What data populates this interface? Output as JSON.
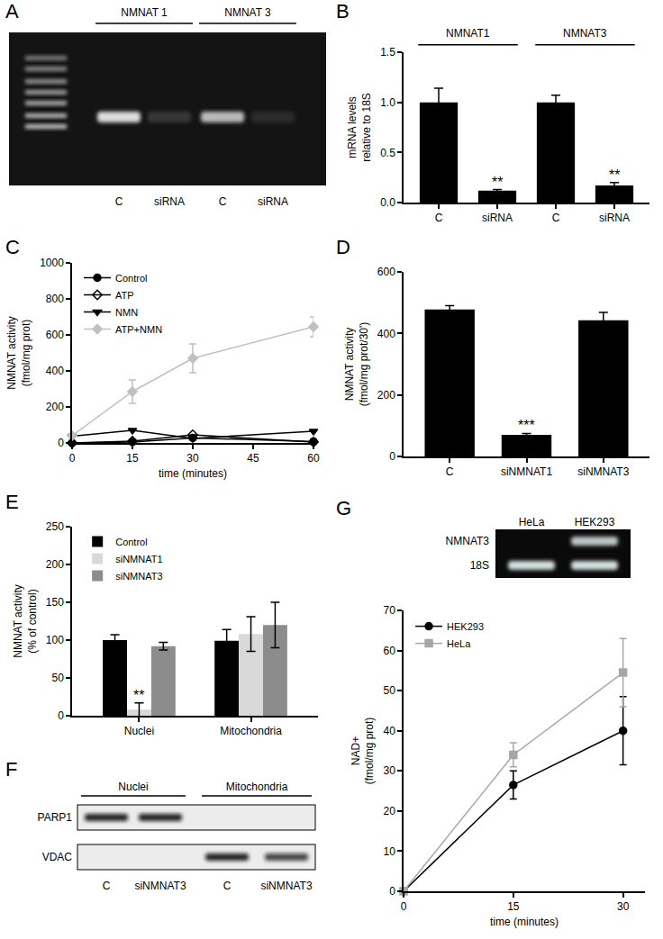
{
  "chart_data": [
    {
      "panel": "B",
      "type": "bar",
      "categories": [
        "C",
        "siRNA",
        "C",
        "siRNA"
      ],
      "values": [
        1.0,
        0.12,
        1.0,
        0.17
      ],
      "errors": [
        0.14,
        0.01,
        0.07,
        0.03
      ],
      "color": "#000000",
      "ylabel": [
        "mRNA levels",
        "relative to 18S"
      ],
      "ylim": [
        0,
        1.5
      ],
      "yticks": [
        {
          "value": 0,
          "label": "0.0"
        },
        {
          "value": 0.5,
          "label": "0.5"
        },
        {
          "value": 1,
          "label": "1.0"
        },
        {
          "value": 1.5,
          "label": "1.5"
        }
      ],
      "groups": [
        {
          "label": "NMNAT1",
          "from": 0,
          "to": 1
        },
        {
          "label": "NMNAT3",
          "from": 2,
          "to": 3
        }
      ],
      "annotations": [
        {
          "text": "**",
          "category": 1
        },
        {
          "text": "**",
          "category": 3
        }
      ]
    },
    {
      "panel": "C",
      "type": "line",
      "x": [
        0,
        15,
        30,
        60
      ],
      "series": [
        {
          "name": "Control",
          "color": "#000000",
          "marker": "circle",
          "values": [
            0,
            5,
            28,
            8
          ]
        },
        {
          "name": "ATP",
          "color": "#000000",
          "marker": "diamond-open",
          "values": [
            0,
            10,
            45,
            5
          ]
        },
        {
          "name": "NMN",
          "color": "#000000",
          "marker": "triangle-down",
          "values": [
            38,
            70,
            25,
            65
          ]
        },
        {
          "name": "ATP+NMN",
          "color": "#c0c0c0",
          "marker": "diamond",
          "values": [
            40,
            285,
            470,
            645
          ],
          "errors": [
            10,
            65,
            80,
            55
          ]
        }
      ],
      "xlabel": "time (minutes)",
      "ylabel": [
        "NMNAT activity",
        "(fmol/mg prot)"
      ],
      "xlim": [
        0,
        60
      ],
      "xticks": [
        0,
        15,
        30,
        45,
        60
      ],
      "ylim": [
        0,
        1000
      ],
      "yticks": [
        0,
        200,
        400,
        600,
        800,
        1000
      ],
      "legend": "upper left"
    },
    {
      "panel": "D",
      "type": "bar",
      "categories": [
        "C",
        "siNMNAT1",
        "siNMNAT3"
      ],
      "values": [
        478,
        70,
        443
      ],
      "errors": [
        12,
        5,
        25
      ],
      "color": "#000000",
      "ylabel": [
        "NMNAT activity",
        "(fmol/mg prot/30')"
      ],
      "ylim": [
        0,
        600
      ],
      "yticks": [
        0,
        200,
        400,
        600
      ],
      "annotations": [
        {
          "text": "***",
          "category": 1
        }
      ]
    },
    {
      "panel": "E",
      "type": "bar",
      "categories": [
        "Nuclei",
        "Mitochondria"
      ],
      "series": [
        {
          "name": "Control",
          "color": "#000000",
          "values": [
            100,
            99
          ],
          "errors": [
            7,
            15
          ]
        },
        {
          "name": "siNMNAT1",
          "color": "#d9d9d9",
          "values": [
            8,
            108
          ],
          "errors": [
            9,
            23
          ]
        },
        {
          "name": "siNMNAT3",
          "color": "#8c8c8c",
          "values": [
            92,
            120
          ],
          "errors": [
            5,
            30
          ]
        }
      ],
      "ylabel": [
        "NMNAT activity",
        "(% of control)"
      ],
      "ylim": [
        0,
        250
      ],
      "yticks": [
        0,
        50,
        100,
        150,
        200,
        250
      ],
      "legend": "upper left",
      "annotations": [
        {
          "text": "**",
          "category": 0,
          "series": "siNMNAT1"
        }
      ]
    },
    {
      "panel": "G",
      "type": "line",
      "x": [
        0,
        15,
        30
      ],
      "series": [
        {
          "name": "HEK293",
          "color": "#000000",
          "marker": "circle",
          "values": [
            0,
            26.5,
            40
          ],
          "errors": [
            0,
            3.5,
            8.5
          ]
        },
        {
          "name": "HeLa",
          "color": "#a6a6a6",
          "marker": "square",
          "values": [
            0,
            34,
            54.5
          ],
          "errors": [
            0,
            3,
            8.5
          ]
        }
      ],
      "xlabel": "time (minutes)",
      "ylabel": [
        "NAD+",
        "(fmol/mg prot)"
      ],
      "xlim": [
        0,
        33
      ],
      "xticks": [
        0,
        15,
        30
      ],
      "ylim": [
        0,
        70
      ],
      "yticks": [
        0,
        10,
        20,
        30,
        40,
        50,
        60,
        70
      ],
      "legend": "upper left",
      "inset": {
        "lanes": [
          "HeLa",
          "HEK293"
        ],
        "rows": [
          {
            "label": "NMNAT3",
            "bands": [
              0,
              0.8
            ]
          },
          {
            "label": "18S",
            "bands": [
              0.9,
              0.9
            ]
          }
        ]
      }
    }
  ],
  "gels": [
    {
      "panel": "A",
      "groups": [
        {
          "label": "NMNAT 1",
          "lanes": [
            {
              "label": "C",
              "band": 0.85
            },
            {
              "label": "siRNA",
              "band": 0.15
            }
          ]
        },
        {
          "label": "NMNAT 3",
          "lanes": [
            {
              "label": "C",
              "band": 0.7
            },
            {
              "label": "siRNA",
              "band": 0.1
            }
          ]
        }
      ]
    },
    {
      "panel": "F",
      "groups": [
        {
          "label": "Nuclei",
          "lanes": [
            "C",
            "siNMNAT3"
          ]
        },
        {
          "label": "Mitochondria",
          "lanes": [
            "C",
            "siNMNAT3"
          ]
        }
      ],
      "rows": [
        {
          "label": "PARP1",
          "bands": [
            0.9,
            0.9,
            0,
            0
          ]
        },
        {
          "label": "VDAC",
          "bands": [
            0,
            0,
            0.9,
            0.75
          ]
        }
      ]
    }
  ]
}
